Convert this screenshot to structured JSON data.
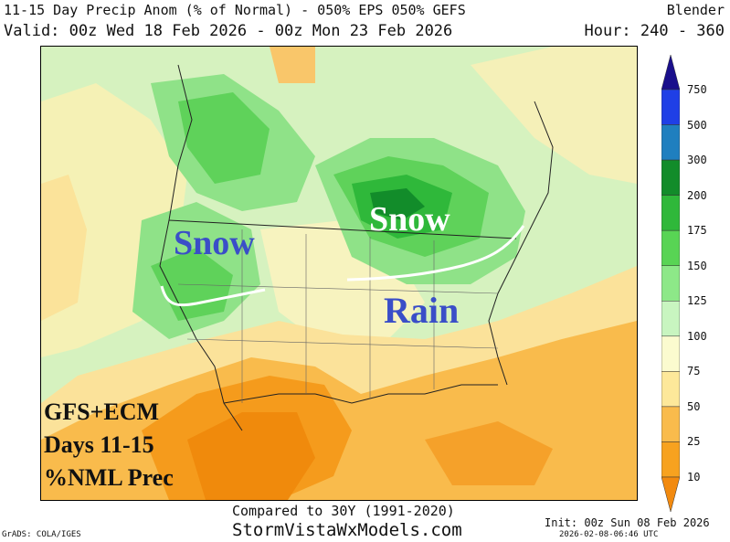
{
  "header": {
    "line1_left": "11-15 Day Precip Anom (% of Normal) - 050% EPS 050% GEFS",
    "line1_right": "Blender",
    "line2_left": "Valid: 00z Wed 18 Feb 2026 - 00z Mon 23 Feb 2026",
    "line2_right": "Hour: 240 - 360"
  },
  "overlays": {
    "snow_west": "Snow",
    "snow_east": "Snow",
    "rain": "Rain",
    "box_line1": "GFS+ECM",
    "box_line2": "Days 11-15",
    "box_line3": "%NML Prec"
  },
  "colorbar": {
    "levels": [
      "750",
      "500",
      "300",
      "200",
      "175",
      "150",
      "125",
      "100",
      "75",
      "50",
      "25",
      "10"
    ],
    "colors": [
      "#1a0f8c",
      "#1f3fe6",
      "#1f7fbf",
      "#128c2a",
      "#2fb83a",
      "#58d454",
      "#8de888",
      "#c8f5c0",
      "#fbfbcf",
      "#fde89a",
      "#f9bb4c",
      "#f7a21f",
      "#f28a0f"
    ],
    "accent_text": "#3a4ec8"
  },
  "footer": {
    "compared": "Compared to 30Y (1991-2020)",
    "site": "StormVistaWxModels.com",
    "init": "Init: 00z Sun 08 Feb 2026",
    "stamp": "2026-02-08-06:46 UTC",
    "grads": "GrADS: COLA/IGES"
  }
}
